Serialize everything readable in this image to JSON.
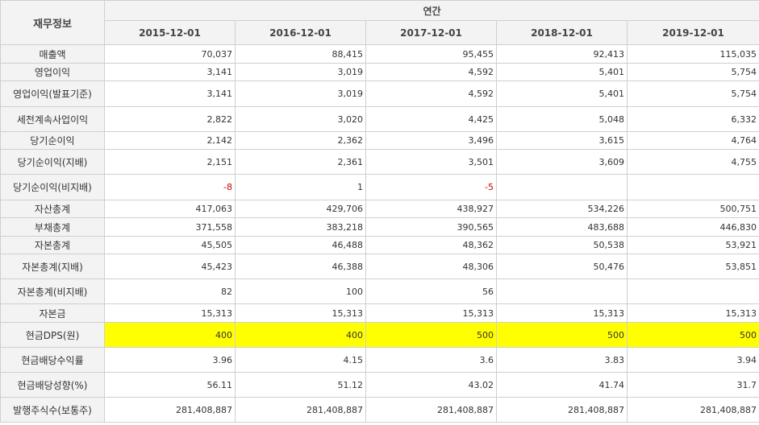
{
  "table": {
    "corner_label": "재무정보",
    "period_label": "연간",
    "columns": [
      "2015-12-01",
      "2016-12-01",
      "2017-12-01",
      "2018-12-01",
      "2019-12-01"
    ],
    "rows": [
      {
        "label": "매출액",
        "values": [
          "70,037",
          "88,415",
          "95,455",
          "92,413",
          "115,035"
        ]
      },
      {
        "label": "영업이익",
        "values": [
          "3,141",
          "3,019",
          "4,592",
          "5,401",
          "5,754"
        ]
      },
      {
        "label": "영업이익(발표기준)",
        "values": [
          "3,141",
          "3,019",
          "4,592",
          "5,401",
          "5,754"
        ]
      },
      {
        "label": "세전계속사업이익",
        "values": [
          "2,822",
          "3,020",
          "4,425",
          "5,048",
          "6,332"
        ]
      },
      {
        "label": "당기순이익",
        "values": [
          "2,142",
          "2,362",
          "3,496",
          "3,615",
          "4,764"
        ]
      },
      {
        "label": "당기순이익(지배)",
        "values": [
          "2,151",
          "2,361",
          "3,501",
          "3,609",
          "4,755"
        ]
      },
      {
        "label": "당기순이익(비지배)",
        "values": [
          "-8",
          "1",
          "-5",
          "",
          ""
        ]
      },
      {
        "label": "자산총계",
        "values": [
          "417,063",
          "429,706",
          "438,927",
          "534,226",
          "500,751"
        ]
      },
      {
        "label": "부채총계",
        "values": [
          "371,558",
          "383,218",
          "390,565",
          "483,688",
          "446,830"
        ]
      },
      {
        "label": "자본총계",
        "values": [
          "45,505",
          "46,488",
          "48,362",
          "50,538",
          "53,921"
        ]
      },
      {
        "label": "자본총계(지배)",
        "values": [
          "45,423",
          "46,388",
          "48,306",
          "50,476",
          "53,851"
        ]
      },
      {
        "label": "자본총계(비지배)",
        "values": [
          "82",
          "100",
          "56",
          "",
          ""
        ]
      },
      {
        "label": "자본금",
        "values": [
          "15,313",
          "15,313",
          "15,313",
          "15,313",
          "15,313"
        ]
      },
      {
        "label": "현금DPS(원)",
        "values": [
          "400",
          "400",
          "500",
          "500",
          "500"
        ]
      },
      {
        "label": "현금배당수익률",
        "values": [
          "3.96",
          "4.15",
          "3.6",
          "3.83",
          "3.94"
        ]
      },
      {
        "label": "현금배당성향(%)",
        "values": [
          "56.11",
          "51.12",
          "43.02",
          "41.74",
          "31.7"
        ]
      },
      {
        "label": "발행주식수(보통주)",
        "values": [
          "281,408,887",
          "281,408,887",
          "281,408,887",
          "281,408,887",
          "281,408,887"
        ]
      }
    ],
    "highlight_row": "현금DPS(원)",
    "highlight_color": "#ffff00",
    "negative_color": "#cc0000"
  }
}
